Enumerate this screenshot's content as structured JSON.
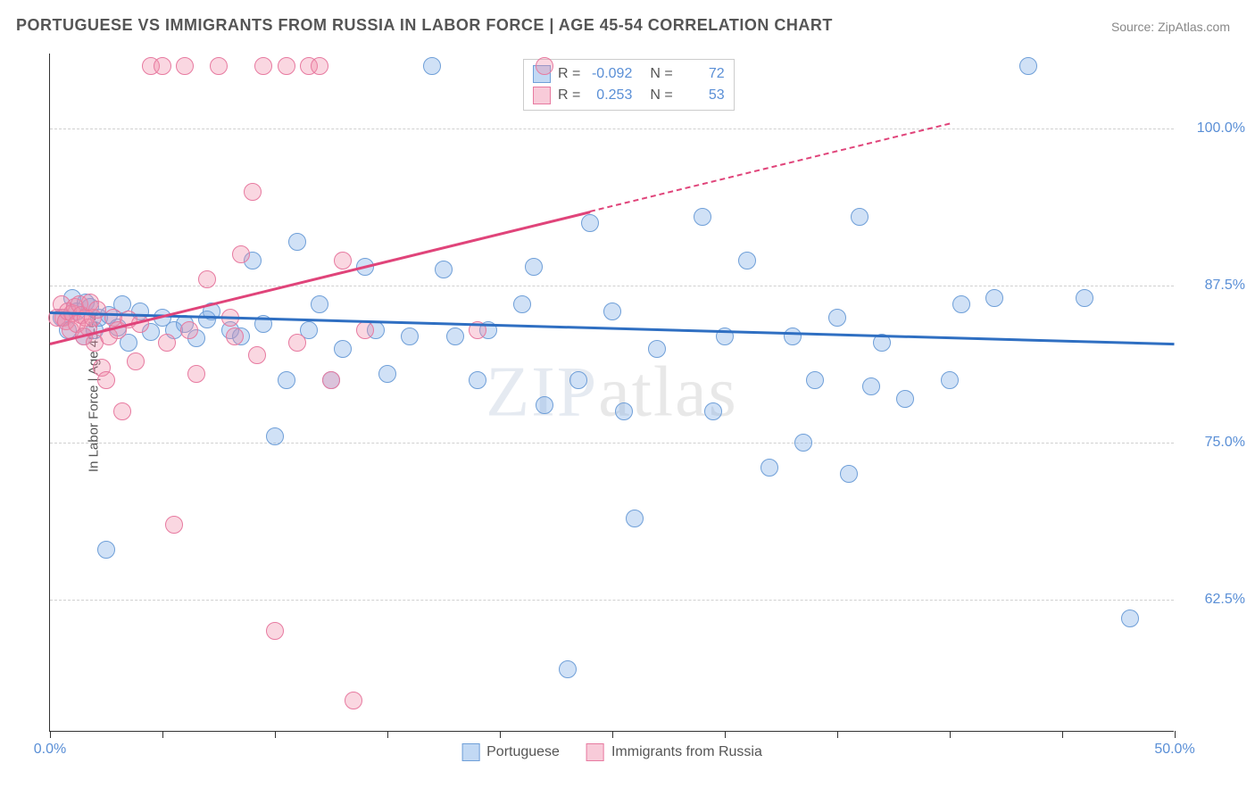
{
  "title": "PORTUGUESE VS IMMIGRANTS FROM RUSSIA IN LABOR FORCE | AGE 45-54 CORRELATION CHART",
  "source": "Source: ZipAtlas.com",
  "y_axis_title": "In Labor Force | Age 45-54",
  "watermark_bold": "ZIP",
  "watermark_thin": "atlas",
  "chart": {
    "type": "scatter",
    "xlim": [
      0,
      50
    ],
    "ylim": [
      52,
      106
    ],
    "x_ticks": [
      0,
      5,
      10,
      15,
      20,
      25,
      30,
      35,
      40,
      45,
      50
    ],
    "x_tick_labels": {
      "0": "0.0%",
      "50": "50.0%"
    },
    "y_ticks": [
      62.5,
      75.0,
      87.5,
      100.0
    ],
    "y_tick_labels": [
      "62.5%",
      "75.0%",
      "87.5%",
      "100.0%"
    ],
    "background_color": "#ffffff",
    "grid_color": "#d0d0d0",
    "axis_color": "#333333",
    "tick_label_color": "#5a8fd6",
    "marker_radius": 10,
    "series": [
      {
        "name": "Portuguese",
        "color_fill": "rgba(120,170,230,0.35)",
        "color_stroke": "#6f9fd8",
        "R": "-0.092",
        "N": "72",
        "trend": {
          "x1": 0,
          "y1": 85.5,
          "x2": 50,
          "y2": 83.0,
          "color": "#2f6fc2",
          "dash_after": 50
        },
        "points": [
          [
            0.5,
            85
          ],
          [
            0.8,
            84
          ],
          [
            1.0,
            86.5
          ],
          [
            1.2,
            85.5
          ],
          [
            1.5,
            83.5
          ],
          [
            1.6,
            86.2
          ],
          [
            1.8,
            85.8
          ],
          [
            2.0,
            84.0
          ],
          [
            2.2,
            85.0
          ],
          [
            2.5,
            66.5
          ],
          [
            2.6,
            85.2
          ],
          [
            3.0,
            84.2
          ],
          [
            3.2,
            86.0
          ],
          [
            3.5,
            83.0
          ],
          [
            4.0,
            85.5
          ],
          [
            4.5,
            83.8
          ],
          [
            5.0,
            85.0
          ],
          [
            5.5,
            84.0
          ],
          [
            6.0,
            84.5
          ],
          [
            6.5,
            83.3
          ],
          [
            7.0,
            84.8
          ],
          [
            7.2,
            85.5
          ],
          [
            8.0,
            84.0
          ],
          [
            8.5,
            83.5
          ],
          [
            9.0,
            89.5
          ],
          [
            9.5,
            84.5
          ],
          [
            10.0,
            75.5
          ],
          [
            10.5,
            80.0
          ],
          [
            11.0,
            91.0
          ],
          [
            11.5,
            84.0
          ],
          [
            12.0,
            86.0
          ],
          [
            12.5,
            80.0
          ],
          [
            13.0,
            82.5
          ],
          [
            14.0,
            89.0
          ],
          [
            14.5,
            84.0
          ],
          [
            15.0,
            80.5
          ],
          [
            16.0,
            83.5
          ],
          [
            17.0,
            105.0
          ],
          [
            17.5,
            88.8
          ],
          [
            18.0,
            83.5
          ],
          [
            19.0,
            80.0
          ],
          [
            19.5,
            84.0
          ],
          [
            21.0,
            86.0
          ],
          [
            21.5,
            89.0
          ],
          [
            22.0,
            78.0
          ],
          [
            23.0,
            57.0
          ],
          [
            23.5,
            80.0
          ],
          [
            24.0,
            92.5
          ],
          [
            25.0,
            85.5
          ],
          [
            25.5,
            77.5
          ],
          [
            26.0,
            69.0
          ],
          [
            27.0,
            82.5
          ],
          [
            29.0,
            93.0
          ],
          [
            29.5,
            77.5
          ],
          [
            30.0,
            83.5
          ],
          [
            31.0,
            89.5
          ],
          [
            32.0,
            73.0
          ],
          [
            33.0,
            83.5
          ],
          [
            33.5,
            75.0
          ],
          [
            34.0,
            80.0
          ],
          [
            35.0,
            85.0
          ],
          [
            35.5,
            72.5
          ],
          [
            36.0,
            93.0
          ],
          [
            36.5,
            79.5
          ],
          [
            37.0,
            83.0
          ],
          [
            38.0,
            78.5
          ],
          [
            40.0,
            80.0
          ],
          [
            40.5,
            86.0
          ],
          [
            42.0,
            86.5
          ],
          [
            43.5,
            105.0
          ],
          [
            46.0,
            86.5
          ],
          [
            48.0,
            61.0
          ]
        ]
      },
      {
        "name": "Immigrants from Russia",
        "color_fill": "rgba(240,140,170,0.35)",
        "color_stroke": "#e77aa0",
        "R": "0.253",
        "N": "53",
        "trend": {
          "x1": 0,
          "y1": 83.0,
          "x2": 24,
          "y2": 93.5,
          "color": "#e0447a",
          "dash_after": 24,
          "dash_x2": 40,
          "dash_y2": 100.5
        },
        "points": [
          [
            0.3,
            85.0
          ],
          [
            0.5,
            86.0
          ],
          [
            0.6,
            85.0
          ],
          [
            0.7,
            84.7
          ],
          [
            0.8,
            85.5
          ],
          [
            0.9,
            84.0
          ],
          [
            1.0,
            85.3
          ],
          [
            1.1,
            85.8
          ],
          [
            1.2,
            84.5
          ],
          [
            1.3,
            86.0
          ],
          [
            1.4,
            85.2
          ],
          [
            1.5,
            83.5
          ],
          [
            1.6,
            85.0
          ],
          [
            1.7,
            84.2
          ],
          [
            1.8,
            86.2
          ],
          [
            1.9,
            85.0
          ],
          [
            2.0,
            83.0
          ],
          [
            2.1,
            85.6
          ],
          [
            2.3,
            81.0
          ],
          [
            2.5,
            80.0
          ],
          [
            2.6,
            83.5
          ],
          [
            2.8,
            85.0
          ],
          [
            3.0,
            84.0
          ],
          [
            3.2,
            77.5
          ],
          [
            3.5,
            84.8
          ],
          [
            3.8,
            81.5
          ],
          [
            4.0,
            84.5
          ],
          [
            4.5,
            105.0
          ],
          [
            5.0,
            105.0
          ],
          [
            5.2,
            83.0
          ],
          [
            5.5,
            68.5
          ],
          [
            6.0,
            105.0
          ],
          [
            6.2,
            84.0
          ],
          [
            6.5,
            80.5
          ],
          [
            7.0,
            88.0
          ],
          [
            7.5,
            105.0
          ],
          [
            8.0,
            85.0
          ],
          [
            8.2,
            83.5
          ],
          [
            8.5,
            90.0
          ],
          [
            9.0,
            95.0
          ],
          [
            9.2,
            82.0
          ],
          [
            9.5,
            105.0
          ],
          [
            10.0,
            60.0
          ],
          [
            10.5,
            105.0
          ],
          [
            11.0,
            83.0
          ],
          [
            11.5,
            105.0
          ],
          [
            12.0,
            105.0
          ],
          [
            12.5,
            80.0
          ],
          [
            13.0,
            89.5
          ],
          [
            13.5,
            54.5
          ],
          [
            14.0,
            84.0
          ],
          [
            19.0,
            84.0
          ],
          [
            22.0,
            105.0
          ]
        ]
      }
    ]
  },
  "legend_stats": {
    "rows": [
      {
        "swatch_fill": "rgba(120,170,230,0.45)",
        "swatch_stroke": "#6f9fd8",
        "r_label": "R =",
        "r_val": "-0.092",
        "n_label": "N =",
        "n_val": "72"
      },
      {
        "swatch_fill": "rgba(240,140,170,0.45)",
        "swatch_stroke": "#e77aa0",
        "r_label": "R =",
        "r_val": "0.253",
        "n_label": "N =",
        "n_val": "53"
      }
    ]
  },
  "legend_bottom": {
    "items": [
      {
        "swatch_fill": "rgba(120,170,230,0.45)",
        "swatch_stroke": "#6f9fd8",
        "label": "Portuguese"
      },
      {
        "swatch_fill": "rgba(240,140,170,0.45)",
        "swatch_stroke": "#e77aa0",
        "label": "Immigrants from Russia"
      }
    ]
  }
}
